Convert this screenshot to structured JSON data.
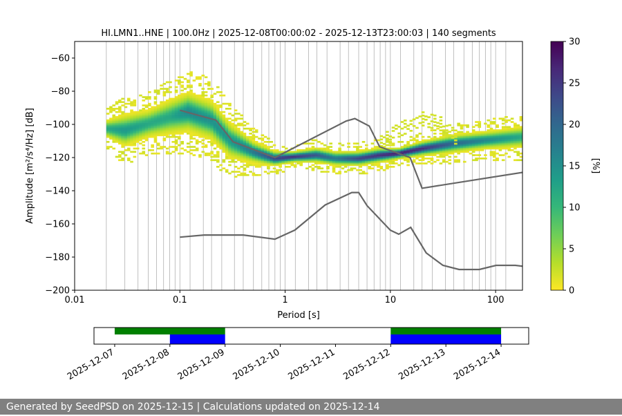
{
  "chart_data": [
    {
      "type": "heatmap",
      "title": "HI.LMN1..HNE | 100.0Hz | 2025-12-08T00:00:02 - 2025-12-13T23:00:03 | 140 segments",
      "xlabel": "Period [s]",
      "ylabel": "Amplitude [m²/s⁴/Hz] [dB]",
      "x_scale": "log",
      "xlim": [
        0.01,
        180
      ],
      "ylim": [
        -200,
        -50
      ],
      "x_ticks": [
        0.01,
        0.1,
        1,
        10,
        100
      ],
      "x_tick_labels": [
        "0.01",
        "0.1",
        "1",
        "10",
        "100"
      ],
      "y_ticks": [
        -200,
        -180,
        -160,
        -140,
        -120,
        -100,
        -80,
        -60
      ],
      "y_tick_labels": [
        "−200",
        "−180",
        "−160",
        "−140",
        "−120",
        "−100",
        "−80",
        "−60"
      ],
      "grid_periods": [
        0.02,
        0.03,
        0.04,
        0.05,
        0.06,
        0.07,
        0.08,
        0.09,
        0.1,
        0.125,
        0.167,
        0.2,
        0.25,
        0.33,
        0.4,
        0.5,
        0.6,
        0.7,
        0.8,
        0.9,
        1.0,
        1.25,
        1.67,
        2.0,
        2.5,
        3.33,
        4.0,
        5.0,
        6.0,
        7.0,
        8.0,
        9.0,
        10,
        12.5,
        16.7,
        20,
        25,
        33.3,
        40,
        50,
        60,
        70,
        80,
        90,
        100,
        125
      ],
      "colorbar": {
        "label": "[%]",
        "range": [
          0,
          30
        ],
        "ticks": [
          0,
          5,
          10,
          15,
          20,
          25,
          30
        ],
        "colormap": "viridis_r",
        "stops": [
          "#fde725",
          "#b5de2b",
          "#6ece58",
          "#35b779",
          "#1f9e89",
          "#26828e",
          "#31688e",
          "#3e4989",
          "#482878",
          "#440154"
        ]
      },
      "mode_curve": {
        "period": [
          0.02,
          0.03,
          0.05,
          0.08,
          0.12,
          0.2,
          0.3,
          0.5,
          0.8,
          1.2,
          2,
          3,
          5,
          8,
          12,
          20,
          40,
          80,
          180
        ],
        "db": [
          -103,
          -104,
          -100,
          -96,
          -93,
          -98,
          -110,
          -117,
          -121,
          -120,
          -119,
          -121,
          -121,
          -119,
          -118,
          -115,
          -112,
          -110,
          -108
        ],
        "percent": [
          12,
          14,
          12,
          12,
          16,
          15,
          14,
          18,
          24,
          26,
          22,
          18,
          24,
          26,
          28,
          26,
          20,
          16,
          12
        ],
        "spread_db": [
          5,
          9,
          8,
          10,
          11,
          11,
          10,
          6,
          4,
          3,
          4,
          4,
          4,
          4,
          3,
          4,
          5,
          5,
          6
        ]
      },
      "secondary_band": {
        "period": [
          8,
          12,
          20,
          30,
          45
        ],
        "db": [
          -112,
          -104,
          -97,
          -100,
          -110
        ],
        "percent": [
          2,
          2,
          2,
          2,
          2
        ]
      },
      "nhnm": {
        "period": [
          0.1,
          0.22,
          0.32,
          0.8,
          3.8,
          4.6,
          6.3,
          7.9,
          15.4,
          20,
          354.8
        ],
        "db": [
          -91.5,
          -97.4,
          -110.5,
          -120,
          -98,
          -96.5,
          -101,
          -113.5,
          -120,
          -138.5,
          -126
        ]
      },
      "nlnm": {
        "period": [
          0.1,
          0.17,
          0.4,
          0.8,
          1.24,
          2.4,
          4.3,
          5,
          6,
          10,
          12,
          15.6,
          21.9,
          31.6,
          45,
          70,
          101,
          154,
          328
        ],
        "db": [
          -168,
          -166.7,
          -166.7,
          -169.2,
          -163.7,
          -148.6,
          -141.1,
          -141.1,
          -149,
          -163.8,
          -166.2,
          -162.1,
          -177.5,
          -185,
          -187.5,
          -187.5,
          -185,
          -185,
          -187.5
        ]
      }
    },
    {
      "type": "bar",
      "title": "",
      "x_dates": [
        "2025-12-07",
        "2025-12-08",
        "2025-12-09",
        "2025-12-10",
        "2025-12-11",
        "2025-12-12",
        "2025-12-13",
        "2025-12-14"
      ],
      "xlim": [
        "2025-12-06T15:00",
        "2025-12-14T12:00"
      ],
      "series": [
        {
          "color": "#008000",
          "intervals": [
            [
              "2025-12-07",
              "2025-12-09"
            ],
            [
              "2025-12-12",
              "2025-12-14"
            ]
          ]
        },
        {
          "color": "#0000ff",
          "intervals": [
            [
              "2025-12-08",
              "2025-12-09"
            ],
            [
              "2025-12-12",
              "2025-12-14"
            ]
          ]
        }
      ]
    }
  ],
  "footer": {
    "text": "Generated by SeedPSD on 2025-12-15 | Calculations updated on 2025-12-14"
  }
}
